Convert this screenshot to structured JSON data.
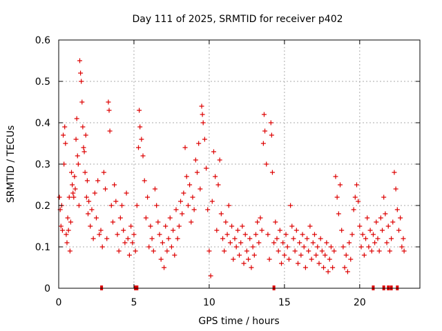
{
  "chart_data": {
    "type": "scatter",
    "title": "Day 111 of 2025, SRMTID for receiver p402",
    "xlabel": "GPS time / hours",
    "ylabel": "SRMTID / TECUs",
    "xlim": [
      0,
      24
    ],
    "ylim": [
      0,
      0.6
    ],
    "xticks": [
      0,
      5,
      10,
      15,
      20
    ],
    "xtick_labels": [
      "0",
      "5",
      "10",
      "15",
      "20"
    ],
    "yticks": [
      0,
      0.1,
      0.2,
      0.3,
      0.4,
      0.5,
      0.6
    ],
    "ytick_labels": [
      "0",
      "0.1",
      "0.2",
      "0.3",
      "0.4",
      "0.5",
      "0.6"
    ],
    "grid": true,
    "legend": "none",
    "marker": "plus",
    "color": "#dd0000",
    "series": [
      {
        "name": "SRMTID",
        "points": [
          [
            0.05,
            0.22
          ],
          [
            0.1,
            0.19
          ],
          [
            0.15,
            0.15
          ],
          [
            0.2,
            0.2
          ],
          [
            0.25,
            0.14
          ],
          [
            0.3,
            0.37
          ],
          [
            0.35,
            0.3
          ],
          [
            0.4,
            0.39
          ],
          [
            0.45,
            0.35
          ],
          [
            0.5,
            0.13
          ],
          [
            0.55,
            0.11
          ],
          [
            0.6,
            0.17
          ],
          [
            0.65,
            0.14
          ],
          [
            0.7,
            0.22
          ],
          [
            0.75,
            0.09
          ],
          [
            0.8,
            0.16
          ],
          [
            0.85,
            0.28
          ],
          [
            0.9,
            0.25
          ],
          [
            0.95,
            0.23
          ],
          [
            1.0,
            0.22
          ],
          [
            1.05,
            0.27
          ],
          [
            1.1,
            0.24
          ],
          [
            1.15,
            0.36
          ],
          [
            1.2,
            0.41
          ],
          [
            1.25,
            0.32
          ],
          [
            1.3,
            0.3
          ],
          [
            1.35,
            0.2
          ],
          [
            1.4,
            0.55
          ],
          [
            1.45,
            0.52
          ],
          [
            1.5,
            0.5
          ],
          [
            1.55,
            0.45
          ],
          [
            1.6,
            0.39
          ],
          [
            1.65,
            0.34
          ],
          [
            1.7,
            0.33
          ],
          [
            1.75,
            0.28
          ],
          [
            1.8,
            0.37
          ],
          [
            1.85,
            0.22
          ],
          [
            1.9,
            0.26
          ],
          [
            1.95,
            0.18
          ],
          [
            2.0,
            0.21
          ],
          [
            2.1,
            0.15
          ],
          [
            2.2,
            0.19
          ],
          [
            2.3,
            0.12
          ],
          [
            2.4,
            0.23
          ],
          [
            2.5,
            0.17
          ],
          [
            2.6,
            0.26
          ],
          [
            2.7,
            0.13
          ],
          [
            2.8,
            0.14
          ],
          [
            2.9,
            0.1
          ],
          [
            3.0,
            0.28
          ],
          [
            3.1,
            0.24
          ],
          [
            3.2,
            0.12
          ],
          [
            3.3,
            0.45
          ],
          [
            3.35,
            0.43
          ],
          [
            3.4,
            0.38
          ],
          [
            3.5,
            0.2
          ],
          [
            3.6,
            0.16
          ],
          [
            3.7,
            0.25
          ],
          [
            3.8,
            0.21
          ],
          [
            3.9,
            0.13
          ],
          [
            4.0,
            0.09
          ],
          [
            4.1,
            0.17
          ],
          [
            4.2,
            0.2
          ],
          [
            4.3,
            0.14
          ],
          [
            4.4,
            0.11
          ],
          [
            4.5,
            0.23
          ],
          [
            4.6,
            0.12
          ],
          [
            4.7,
            0.08
          ],
          [
            4.8,
            0.15
          ],
          [
            4.9,
            0.11
          ],
          [
            5.0,
            0.13
          ],
          [
            5.1,
            0.09
          ],
          [
            5.2,
            0.2
          ],
          [
            5.3,
            0.34
          ],
          [
            5.35,
            0.43
          ],
          [
            5.4,
            0.39
          ],
          [
            5.5,
            0.36
          ],
          [
            5.6,
            0.32
          ],
          [
            5.7,
            0.26
          ],
          [
            5.8,
            0.17
          ],
          [
            5.9,
            0.22
          ],
          [
            6.0,
            0.1
          ],
          [
            6.1,
            0.15
          ],
          [
            6.2,
            0.12
          ],
          [
            6.3,
            0.09
          ],
          [
            6.4,
            0.24
          ],
          [
            6.5,
            0.2
          ],
          [
            6.6,
            0.16
          ],
          [
            6.7,
            0.13
          ],
          [
            6.8,
            0.07
          ],
          [
            6.9,
            0.11
          ],
          [
            7.0,
            0.05
          ],
          [
            7.1,
            0.15
          ],
          [
            7.2,
            0.09
          ],
          [
            7.3,
            0.12
          ],
          [
            7.4,
            0.17
          ],
          [
            7.5,
            0.1
          ],
          [
            7.6,
            0.14
          ],
          [
            7.7,
            0.08
          ],
          [
            7.8,
            0.19
          ],
          [
            7.9,
            0.12
          ],
          [
            8.0,
            0.15
          ],
          [
            8.1,
            0.21
          ],
          [
            8.2,
            0.18
          ],
          [
            8.3,
            0.23
          ],
          [
            8.4,
            0.34
          ],
          [
            8.5,
            0.27
          ],
          [
            8.6,
            0.2
          ],
          [
            8.7,
            0.25
          ],
          [
            8.8,
            0.16
          ],
          [
            8.9,
            0.22
          ],
          [
            9.0,
            0.19
          ],
          [
            9.1,
            0.31
          ],
          [
            9.2,
            0.28
          ],
          [
            9.3,
            0.35
          ],
          [
            9.4,
            0.24
          ],
          [
            9.5,
            0.44
          ],
          [
            9.55,
            0.42
          ],
          [
            9.6,
            0.4
          ],
          [
            9.7,
            0.36
          ],
          [
            9.8,
            0.29
          ],
          [
            9.9,
            0.19
          ],
          [
            10.0,
            0.09
          ],
          [
            10.1,
            0.03
          ],
          [
            10.2,
            0.21
          ],
          [
            10.3,
            0.33
          ],
          [
            10.4,
            0.27
          ],
          [
            10.5,
            0.14
          ],
          [
            10.6,
            0.25
          ],
          [
            10.7,
            0.31
          ],
          [
            10.8,
            0.18
          ],
          [
            10.9,
            0.12
          ],
          [
            11.0,
            0.09
          ],
          [
            11.1,
            0.16
          ],
          [
            11.2,
            0.13
          ],
          [
            11.3,
            0.2
          ],
          [
            11.4,
            0.11
          ],
          [
            11.5,
            0.15
          ],
          [
            11.6,
            0.07
          ],
          [
            11.7,
            0.12
          ],
          [
            11.8,
            0.1
          ],
          [
            11.9,
            0.14
          ],
          [
            12.0,
            0.08
          ],
          [
            12.1,
            0.11
          ],
          [
            12.2,
            0.15
          ],
          [
            12.3,
            0.06
          ],
          [
            12.4,
            0.13
          ],
          [
            12.5,
            0.09
          ],
          [
            12.6,
            0.07
          ],
          [
            12.7,
            0.12
          ],
          [
            12.8,
            0.05
          ],
          [
            12.9,
            0.1
          ],
          [
            13.0,
            0.08
          ],
          [
            13.1,
            0.13
          ],
          [
            13.2,
            0.16
          ],
          [
            13.3,
            0.11
          ],
          [
            13.4,
            0.17
          ],
          [
            13.5,
            0.14
          ],
          [
            13.6,
            0.35
          ],
          [
            13.65,
            0.42
          ],
          [
            13.7,
            0.38
          ],
          [
            13.8,
            0.3
          ],
          [
            13.9,
            0.13
          ],
          [
            14.0,
            0.07
          ],
          [
            14.1,
            0.4
          ],
          [
            14.15,
            0.37
          ],
          [
            14.2,
            0.28
          ],
          [
            14.3,
            0.11
          ],
          [
            14.4,
            0.16
          ],
          [
            14.5,
            0.12
          ],
          [
            14.6,
            0.09
          ],
          [
            14.7,
            0.14
          ],
          [
            14.8,
            0.06
          ],
          [
            14.9,
            0.11
          ],
          [
            15.0,
            0.08
          ],
          [
            15.1,
            0.13
          ],
          [
            15.2,
            0.1
          ],
          [
            15.3,
            0.07
          ],
          [
            15.4,
            0.2
          ],
          [
            15.5,
            0.15
          ],
          [
            15.6,
            0.12
          ],
          [
            15.7,
            0.09
          ],
          [
            15.8,
            0.14
          ],
          [
            15.9,
            0.06
          ],
          [
            16.0,
            0.11
          ],
          [
            16.1,
            0.08
          ],
          [
            16.2,
            0.13
          ],
          [
            16.3,
            0.1
          ],
          [
            16.4,
            0.05
          ],
          [
            16.5,
            0.12
          ],
          [
            16.6,
            0.09
          ],
          [
            16.7,
            0.15
          ],
          [
            16.8,
            0.07
          ],
          [
            16.9,
            0.11
          ],
          [
            17.0,
            0.13
          ],
          [
            17.1,
            0.08
          ],
          [
            17.2,
            0.1
          ],
          [
            17.3,
            0.06
          ],
          [
            17.4,
            0.12
          ],
          [
            17.5,
            0.09
          ],
          [
            17.6,
            0.05
          ],
          [
            17.7,
            0.08
          ],
          [
            17.8,
            0.11
          ],
          [
            17.9,
            0.04
          ],
          [
            18.0,
            0.07
          ],
          [
            18.1,
            0.1
          ],
          [
            18.2,
            0.05
          ],
          [
            18.3,
            0.09
          ],
          [
            18.4,
            0.27
          ],
          [
            18.5,
            0.22
          ],
          [
            18.6,
            0.18
          ],
          [
            18.7,
            0.25
          ],
          [
            18.8,
            0.14
          ],
          [
            18.9,
            0.1
          ],
          [
            19.0,
            0.05
          ],
          [
            19.1,
            0.08
          ],
          [
            19.2,
            0.04
          ],
          [
            19.3,
            0.11
          ],
          [
            19.4,
            0.07
          ],
          [
            19.5,
            0.13
          ],
          [
            19.6,
            0.19
          ],
          [
            19.7,
            0.22
          ],
          [
            19.8,
            0.25
          ],
          [
            19.9,
            0.21
          ],
          [
            20.0,
            0.15
          ],
          [
            20.1,
            0.1
          ],
          [
            20.2,
            0.13
          ],
          [
            20.3,
            0.08
          ],
          [
            20.4,
            0.12
          ],
          [
            20.5,
            0.17
          ],
          [
            20.6,
            0.1
          ],
          [
            20.7,
            0.14
          ],
          [
            20.8,
            0.09
          ],
          [
            20.9,
            0.13
          ],
          [
            21.0,
            0.11
          ],
          [
            21.1,
            0.16
          ],
          [
            21.2,
            0.12
          ],
          [
            21.3,
            0.09
          ],
          [
            21.4,
            0.17
          ],
          [
            21.5,
            0.14
          ],
          [
            21.6,
            0.22
          ],
          [
            21.7,
            0.18
          ],
          [
            21.8,
            0.11
          ],
          [
            21.9,
            0.15
          ],
          [
            22.0,
            0.09
          ],
          [
            22.1,
            0.12
          ],
          [
            22.2,
            0.16
          ],
          [
            22.3,
            0.28
          ],
          [
            22.4,
            0.24
          ],
          [
            22.5,
            0.19
          ],
          [
            22.6,
            0.14
          ],
          [
            22.7,
            0.17
          ],
          [
            22.8,
            0.1
          ],
          [
            22.9,
            0.12
          ],
          [
            22.95,
            0.09
          ]
        ]
      }
    ],
    "zero_markers_x": [
      2.85,
      5.1,
      5.2,
      14.3,
      20.9,
      21.6,
      21.9,
      22.1,
      22.5
    ]
  }
}
